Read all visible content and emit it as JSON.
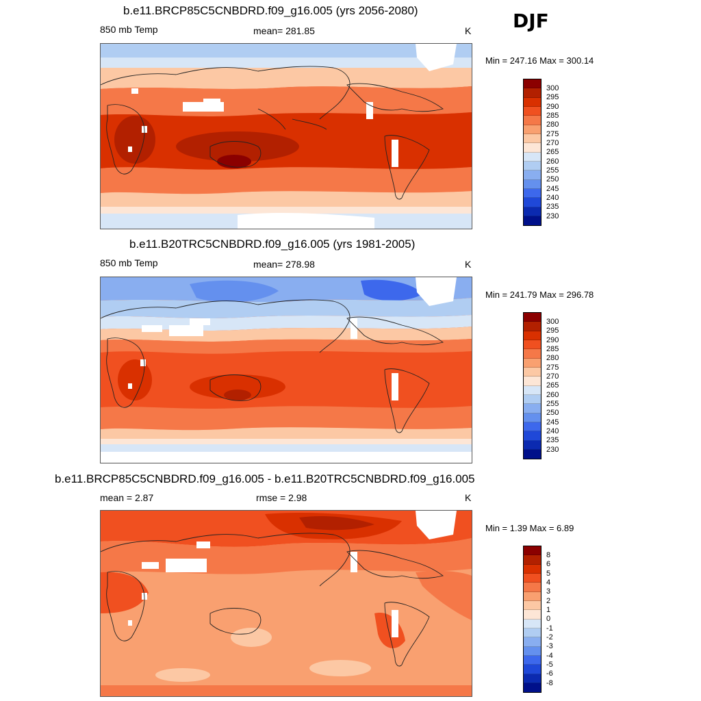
{
  "season": "DJF",
  "panels": [
    {
      "title": "b.e11.BRCP85C5CNBDRD.f09_g16.005 (yrs 2056-2080)",
      "left_label": "850 mb Temp",
      "center_label": "mean= 281.85",
      "units": "K",
      "minmax": "Min = 247.16 Max = 300.14",
      "colorbar": [
        "300",
        "295",
        "290",
        "285",
        "280",
        "275",
        "270",
        "265",
        "260",
        "255",
        "250",
        "245",
        "240",
        "235",
        "230"
      ]
    },
    {
      "title": "b.e11.B20TRC5CNBDRD.f09_g16.005 (yrs 1981-2005)",
      "left_label": "850 mb Temp",
      "center_label": "mean= 278.98",
      "units": "K",
      "minmax": "Min = 241.79 Max = 296.78",
      "colorbar": [
        "300",
        "295",
        "290",
        "285",
        "280",
        "275",
        "270",
        "265",
        "260",
        "255",
        "250",
        "245",
        "240",
        "235",
        "230"
      ]
    },
    {
      "title": "b.e11.BRCP85C5CNBDRD.f09_g16.005 - b.e11.B20TRC5CNBDRD.f09_g16.005",
      "left_label": "mean =   2.87",
      "center_label": "rmse =   2.98",
      "units": "K",
      "minmax": "Min =   1.39 Max =   6.89",
      "colorbar": [
        "8",
        "6",
        "5",
        "4",
        "3",
        "2",
        "1",
        "0",
        "-1",
        "-2",
        "-3",
        "-4",
        "-5",
        "-6",
        "-8"
      ]
    }
  ],
  "colors": {
    "scale": [
      "#8b0000",
      "#b22000",
      "#d93000",
      "#f05020",
      "#f57848",
      "#f9a070",
      "#fcc8a4",
      "#fde6d6",
      "#d7e6f7",
      "#b0cdf2",
      "#89aef0",
      "#6490ee",
      "#3d68ec",
      "#1f48d8",
      "#0b2ab0",
      "#00108a"
    ]
  }
}
